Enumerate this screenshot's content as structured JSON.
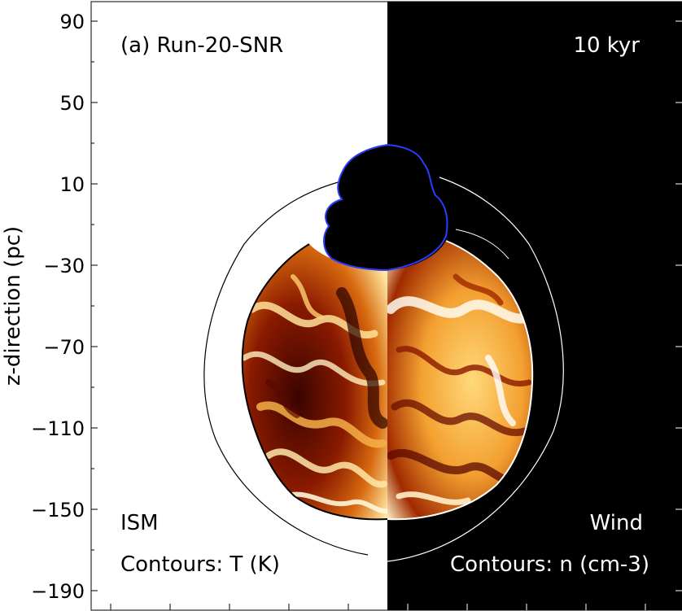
{
  "chart_data": {
    "type": "heatmap",
    "panel_label": "(a) Run-20-SNR",
    "time_label": "10 kyr",
    "ylabel": "z-direction (pc)",
    "ylim": [
      -200,
      100
    ],
    "yticks": [
      90,
      50,
      10,
      -30,
      -70,
      -110,
      -150,
      -190
    ],
    "ytick_labels": [
      "90",
      "50",
      "10",
      "−30",
      "−70",
      "−110",
      "−150",
      "−190"
    ],
    "left_half": {
      "medium": "ISM",
      "contour_label": "Contours: T (K)",
      "background": "#ffffff"
    },
    "right_half": {
      "medium": "Wind",
      "contour_label": "Contours: n (cm-3)",
      "background": "#000000"
    },
    "colormap": "afmhot",
    "grid": false,
    "legend": "none"
  }
}
